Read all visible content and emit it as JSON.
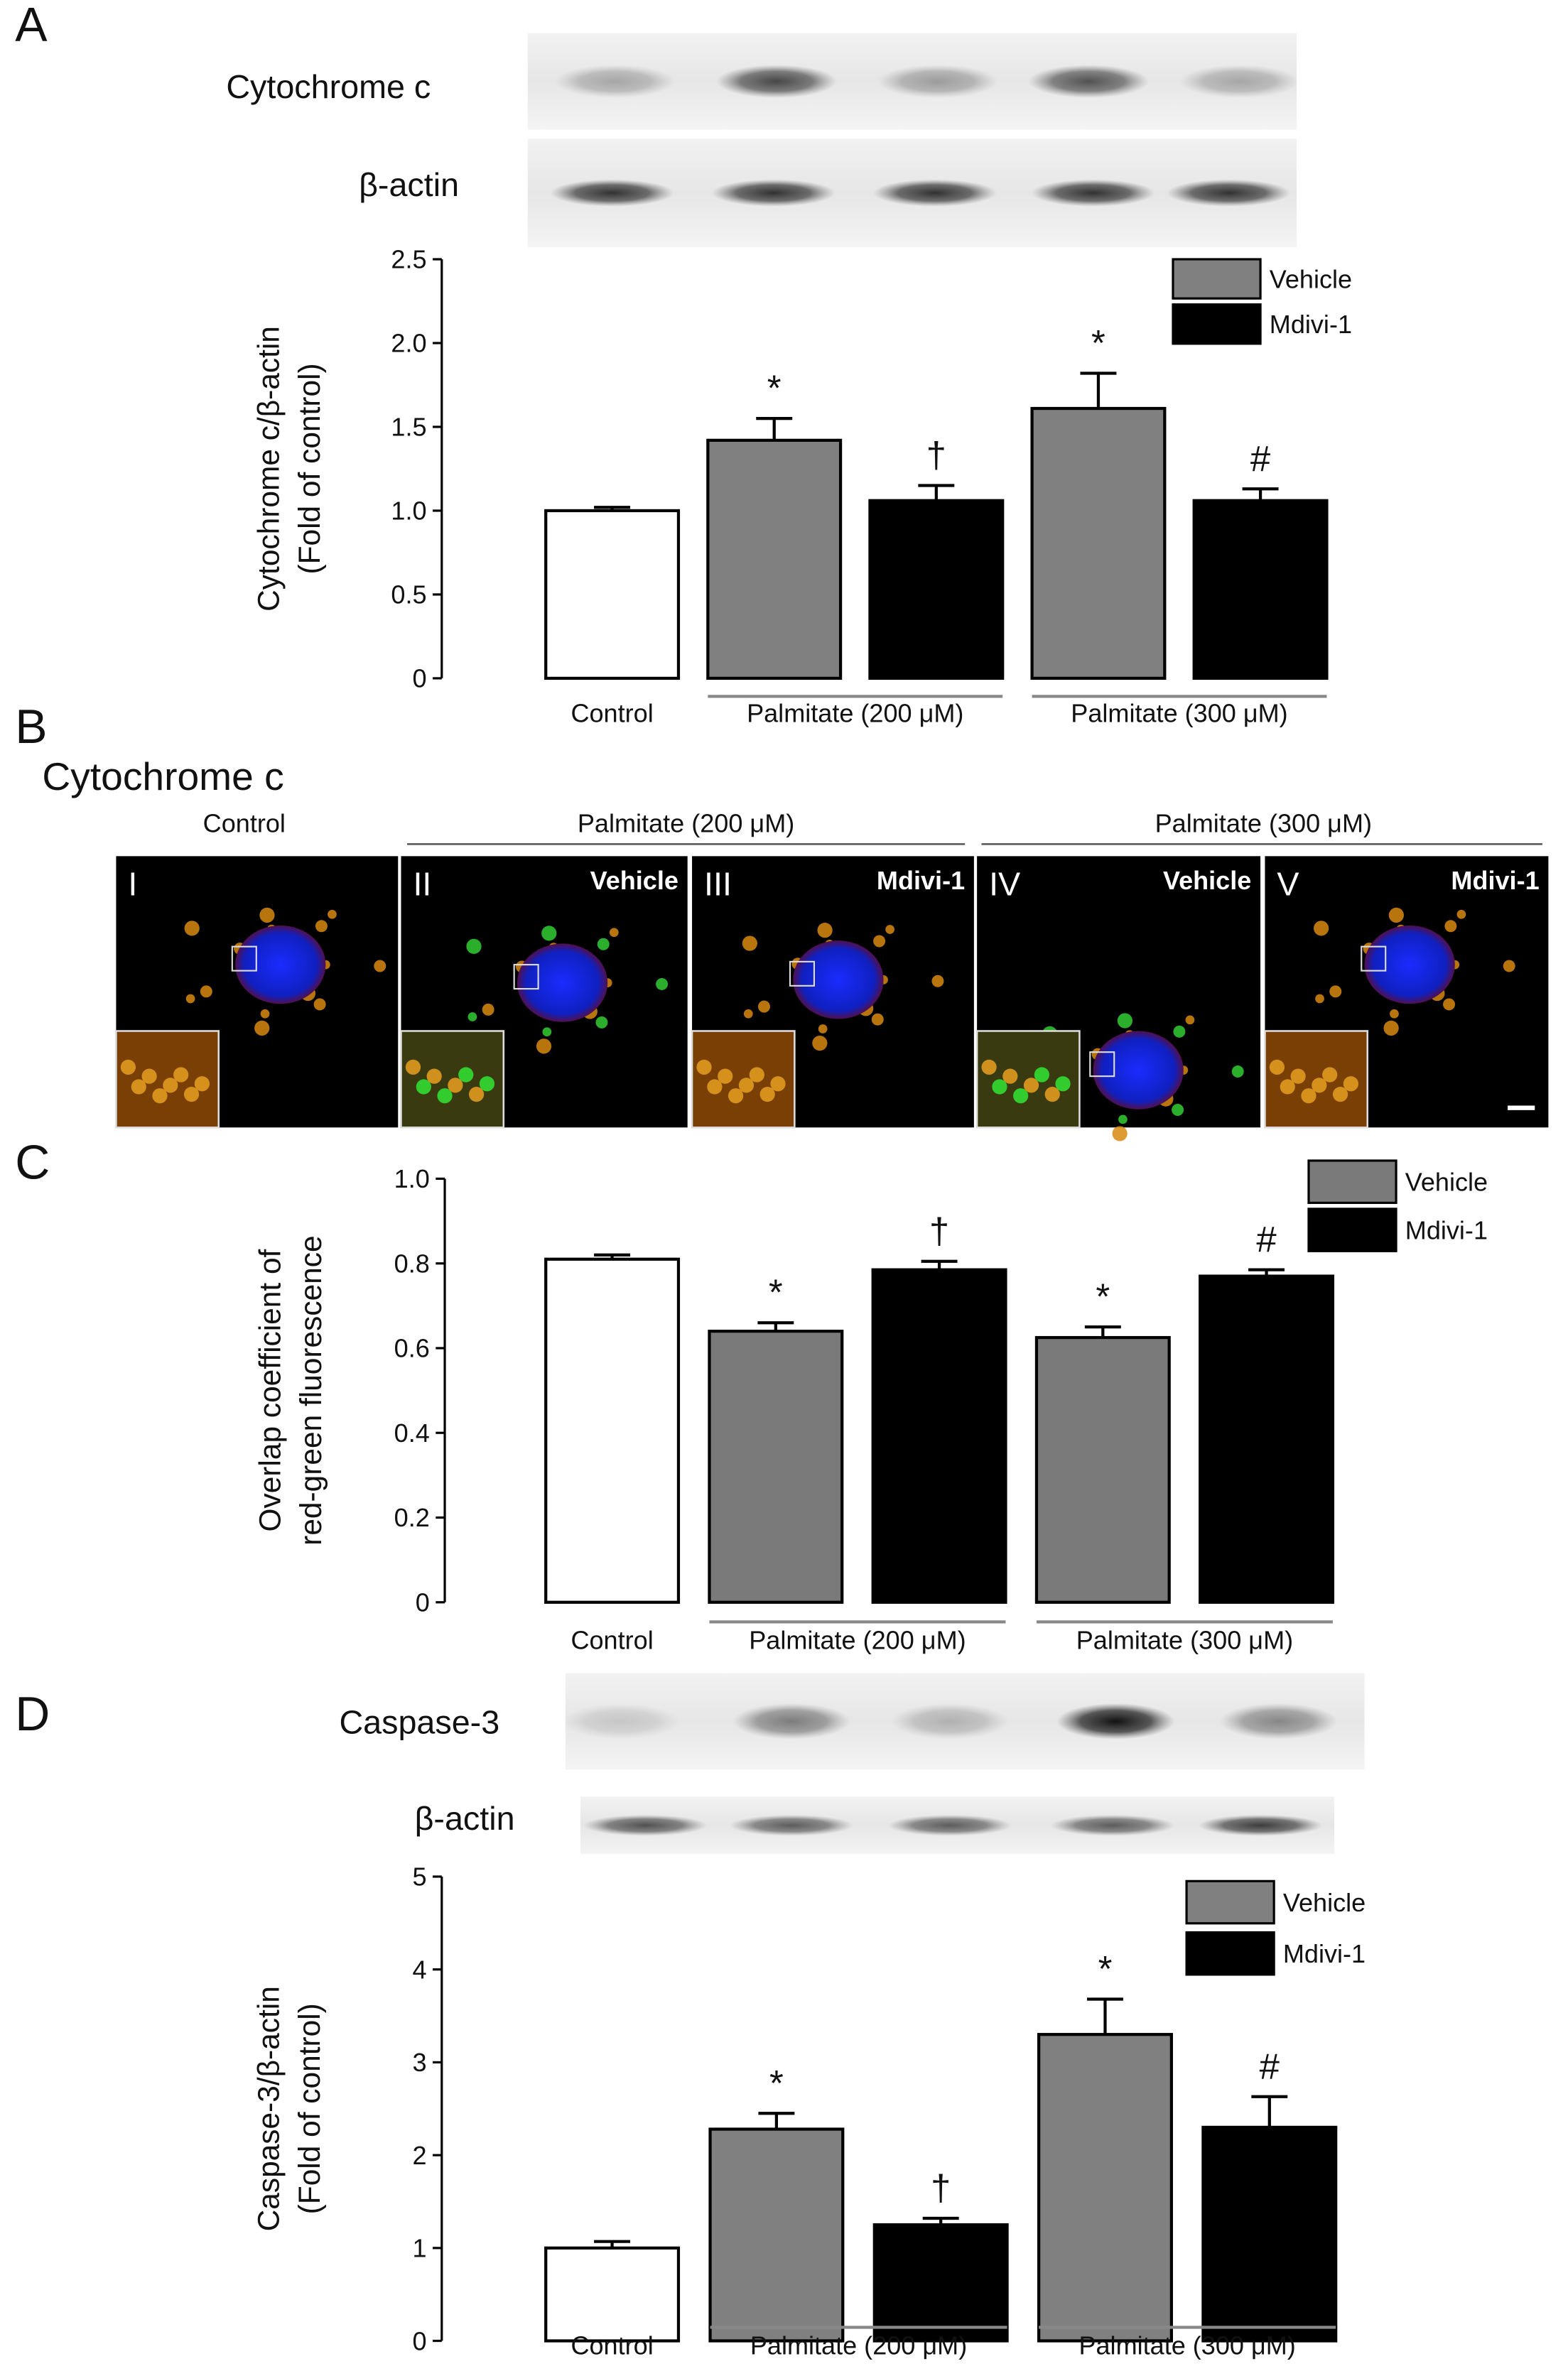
{
  "figure": {
    "panel_labels": [
      "A",
      "B",
      "C",
      "D"
    ],
    "blots_a": [
      "Cytochrome c",
      "β-actin"
    ],
    "b": {
      "title": "Cytochrome c",
      "groups": [
        "Control",
        "Palmitate (200 μM)",
        "Palmitate (300 μM)"
      ],
      "images": [
        {
          "numeral": "I"
        },
        {
          "numeral": "II",
          "treatment": "Vehicle"
        },
        {
          "numeral": "III",
          "treatment": "Mdivi-1"
        },
        {
          "numeral": "IV",
          "treatment": "Vehicle"
        },
        {
          "numeral": "V",
          "treatment": "Mdivi-1"
        }
      ]
    },
    "blots_d": [
      "Caspase-3",
      "β-actin"
    ]
  },
  "chart_data": [
    {
      "type": "bar",
      "ylabel": [
        "Cytochrome c/β-actin",
        "(Fold of control)"
      ],
      "categories": [
        "Control",
        "Palmitate (200 μM)",
        "Palmitate (300 μM)"
      ],
      "series": [
        {
          "color": "#ffffff",
          "values": [
            1.0,
            null,
            null
          ],
          "errors": [
            0.02,
            null,
            null
          ]
        },
        {
          "name": "Vehicle",
          "color": "#808080",
          "values": [
            null,
            1.42,
            1.61
          ],
          "errors": [
            null,
            0.13,
            0.21
          ],
          "annotations": [
            null,
            "*",
            "*"
          ]
        },
        {
          "name": "Mdivi-1",
          "color": "#000000",
          "values": [
            null,
            1.06,
            1.06
          ],
          "errors": [
            null,
            0.09,
            0.07
          ],
          "annotations": [
            null,
            "†",
            "#"
          ]
        }
      ],
      "ylim": [
        0,
        2.5
      ],
      "yticks": [
        0,
        0.5,
        {
          "value": 1,
          "label": "1.0"
        },
        1.5,
        {
          "value": 2,
          "label": "2.0"
        },
        2.5
      ]
    },
    {
      "type": "bar",
      "ylabel": [
        "Overlap coefficient of",
        "red-green fluorescence"
      ],
      "categories": [
        "Control",
        "Palmitate (200 μM)",
        "Palmitate (300 μM)"
      ],
      "series": [
        {
          "color": "#ffffff",
          "values": [
            0.81,
            null,
            null
          ],
          "errors": [
            0.01,
            null,
            null
          ]
        },
        {
          "name": "Vehicle",
          "color": "#7a7a7a",
          "values": [
            null,
            0.64,
            0.625
          ],
          "errors": [
            null,
            0.02,
            0.025
          ],
          "annotations": [
            null,
            "*",
            "*"
          ]
        },
        {
          "name": "Mdivi-1",
          "color": "#000000",
          "values": [
            null,
            0.785,
            0.77
          ],
          "errors": [
            null,
            0.02,
            0.015
          ],
          "annotations": [
            null,
            "†",
            "#"
          ]
        }
      ],
      "ylim": [
        0,
        1
      ],
      "yticks": [
        0,
        0.2,
        0.4,
        0.6,
        0.8,
        {
          "value": 1,
          "label": "1.0"
        }
      ]
    },
    {
      "type": "bar",
      "ylabel": [
        "Caspase-3/β-actin",
        "(Fold of control)"
      ],
      "categories": [
        "Control",
        "Palmitate (200 μM)",
        "Palmitate (300 μM)"
      ],
      "series": [
        {
          "color": "#ffffff",
          "values": [
            1.0,
            null,
            null
          ],
          "errors": [
            0.07,
            null,
            null
          ]
        },
        {
          "name": "Vehicle",
          "color": "#808080",
          "values": [
            null,
            2.28,
            3.3
          ],
          "errors": [
            null,
            0.17,
            0.38
          ],
          "annotations": [
            null,
            "*",
            "*"
          ]
        },
        {
          "name": "Mdivi-1",
          "color": "#000000",
          "values": [
            null,
            1.25,
            2.3
          ],
          "errors": [
            null,
            0.07,
            0.33
          ],
          "annotations": [
            null,
            "†",
            "#"
          ]
        }
      ],
      "ylim": [
        0,
        5
      ],
      "yticks": [
        0,
        1,
        2,
        3,
        4,
        5
      ]
    }
  ]
}
